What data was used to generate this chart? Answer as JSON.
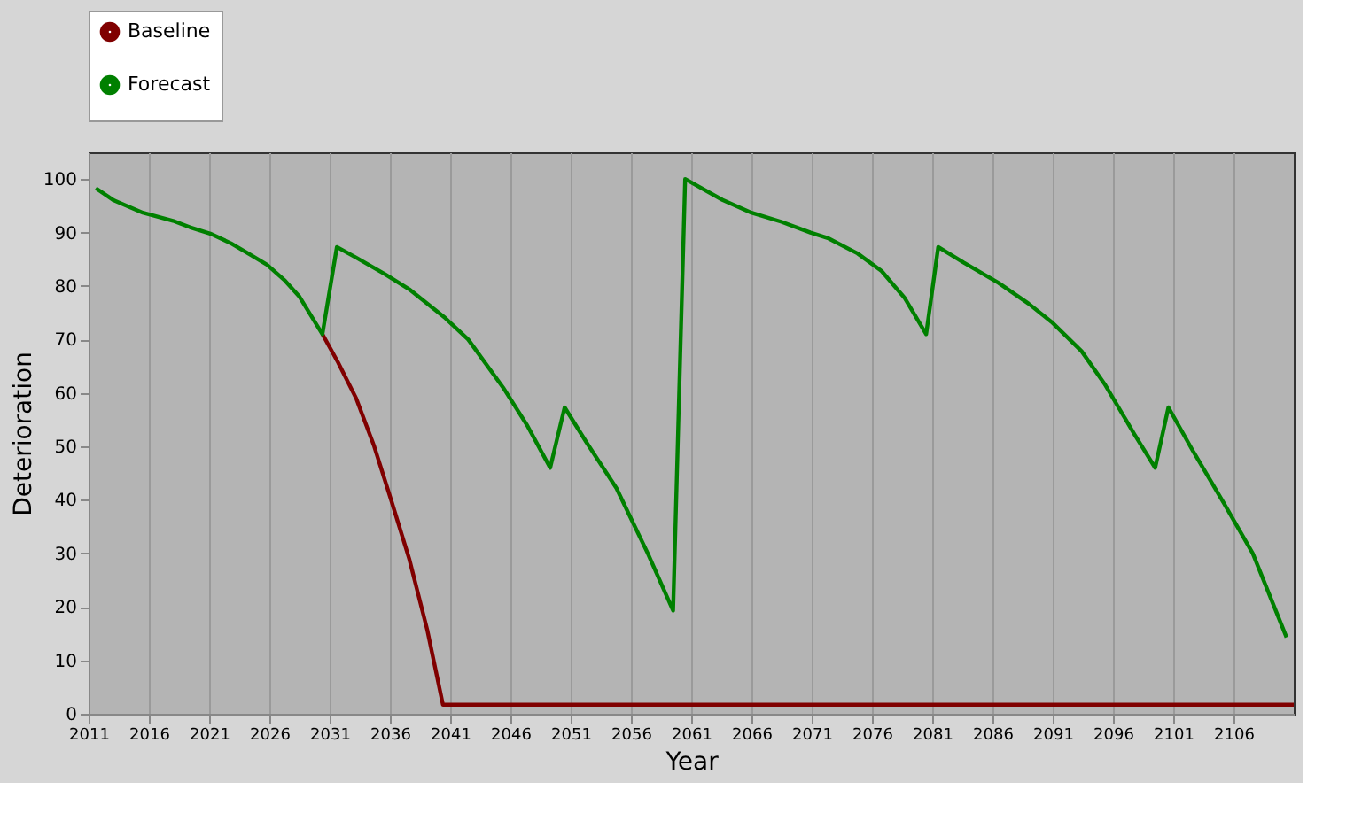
{
  "chart_data": {
    "type": "line",
    "xlabel": "Year",
    "ylabel": "Deterioration",
    "xlim": [
      2011,
      2111
    ],
    "xticks": [
      2011,
      2016,
      2021,
      2026,
      2031,
      2036,
      2041,
      2046,
      2051,
      2056,
      2061,
      2066,
      2071,
      2076,
      2081,
      2086,
      2091,
      2096,
      2101,
      2106
    ],
    "ylim": [
      0,
      105
    ],
    "yticks": [
      0,
      10,
      20,
      30,
      40,
      50,
      60,
      70,
      80,
      90,
      100
    ],
    "grid": "x",
    "legend": "top",
    "marker": "none",
    "line_style": "solid",
    "series": [
      {
        "name": "Baseline",
        "color": "#800000",
        "x": [
          2030.4,
          2031.7,
          2033.2,
          2034.7,
          2036.1,
          2037.6,
          2039.1,
          2040.4,
          2111
        ],
        "values": [
          71,
          65.7,
          59,
          50,
          40,
          29,
          15.7,
          1.7,
          1.7
        ]
      },
      {
        "name": "Forecast",
        "color": "#008000",
        "x": [
          2011.6,
          2013.1,
          2015.5,
          2018,
          2019.4,
          2021.1,
          2022.8,
          2024.3,
          2025.8,
          2027.3,
          2028.5,
          2030.4,
          2031.6,
          2033.2,
          2035.6,
          2037.6,
          2040.5,
          2042.5,
          2045.4,
          2047.4,
          2049.3,
          2050.5,
          2052.3,
          2054.8,
          2056.2,
          2057.4,
          2059.5,
          2060.5,
          2063.6,
          2066,
          2068.5,
          2070.9,
          2072.4,
          2074.8,
          2076.8,
          2078.7,
          2080.5,
          2081.5,
          2083.6,
          2086.5,
          2089,
          2090.9,
          2093.4,
          2095.3,
          2097.8,
          2099.5,
          2100.6,
          2102.7,
          2105.2,
          2107.6,
          2110.4
        ],
        "values": [
          98.3,
          96,
          93.7,
          92.2,
          91,
          89.8,
          88,
          86,
          84,
          81,
          78,
          71,
          87.3,
          85.3,
          82.2,
          79.4,
          74.2,
          70,
          61,
          53.9,
          46,
          57.3,
          50.8,
          42.2,
          35.6,
          30,
          19.3,
          100,
          96.1,
          93.7,
          92,
          90,
          88.9,
          86.1,
          82.8,
          77.8,
          71,
          87.3,
          84.4,
          80.6,
          76.7,
          73.3,
          67.8,
          61.7,
          52.2,
          46,
          57.3,
          48.9,
          39.4,
          30,
          14.3
        ]
      }
    ]
  }
}
